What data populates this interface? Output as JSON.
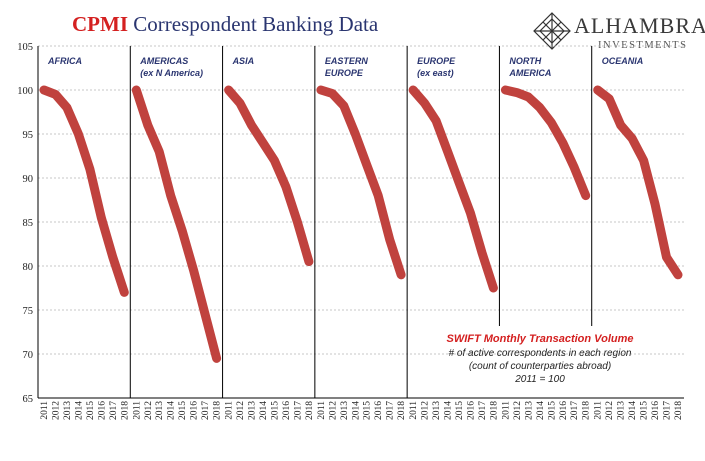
{
  "title": {
    "brand": "CPMI",
    "rest": "Correspondent Banking Data"
  },
  "logo": {
    "name": "ALHAMBRA",
    "sub": "INVESTMENTS",
    "icon": "lattice-diamond-icon"
  },
  "note": {
    "head": "SWIFT Monthly Transaction Volume",
    "line1": "# of active correspondents in each region",
    "line2": "(count of counterparties abroad)",
    "line3": "2011 = 100"
  },
  "colors": {
    "series": "#c0423e",
    "title": "#2a3570",
    "brand": "#d42020",
    "panel_label": "#2a3570"
  },
  "chart_data": {
    "type": "line",
    "x": [
      "2011",
      "2012",
      "2013",
      "2014",
      "2015",
      "2016",
      "2017",
      "2018"
    ],
    "ylim": [
      65,
      105
    ],
    "yticks": [
      65,
      70,
      75,
      80,
      85,
      90,
      95,
      100,
      105
    ],
    "ytick_labels": [
      "65",
      "70",
      "75",
      "80",
      "85",
      "90",
      "95",
      "100",
      "105"
    ],
    "grid": true,
    "panels": [
      {
        "label": [
          "AFRICA"
        ],
        "values": [
          100,
          99.5,
          98,
          95,
          91,
          85.5,
          81,
          77
        ]
      },
      {
        "label": [
          "AMERICAS",
          "(ex N America)"
        ],
        "values": [
          100,
          96,
          93,
          88,
          84,
          79.5,
          74.5,
          69.5
        ]
      },
      {
        "label": [
          "ASIA"
        ],
        "values": [
          100,
          98.5,
          96,
          94,
          92,
          89,
          85,
          80.5
        ]
      },
      {
        "label": [
          "EASTERN",
          "EUROPE"
        ],
        "values": [
          100,
          99.6,
          98.2,
          95,
          91.5,
          88,
          83,
          79
        ]
      },
      {
        "label": [
          "EUROPE",
          "(ex east)"
        ],
        "values": [
          100,
          98.5,
          96.5,
          93,
          89.5,
          86,
          81.5,
          77.5
        ]
      },
      {
        "label": [
          "NORTH",
          "AMERICA"
        ],
        "values": [
          100,
          99.7,
          99.2,
          98,
          96.3,
          94,
          91.2,
          88
        ]
      },
      {
        "label": [
          "OCEANIA"
        ],
        "values": [
          100,
          99,
          96,
          94.5,
          92,
          87,
          81,
          79
        ]
      }
    ]
  }
}
